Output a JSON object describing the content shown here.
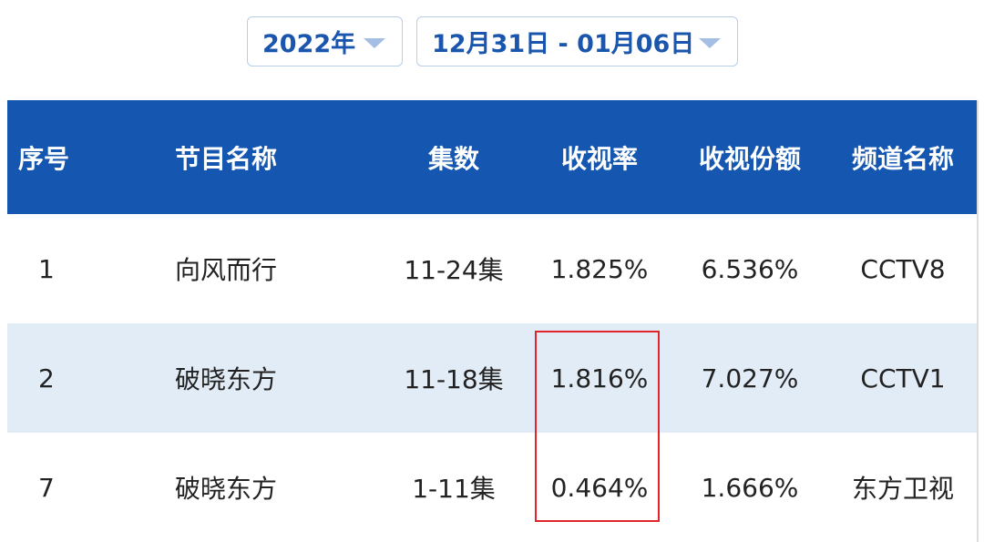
{
  "filters": {
    "year": "2022年",
    "date_range": "12月31日 - 01月06日"
  },
  "table": {
    "headers": [
      "序号",
      "节目名称",
      "集数",
      "收视率",
      "收视份额",
      "频道名称"
    ],
    "rows": [
      [
        "1",
        "向风而行",
        "11-24集",
        "1.825%",
        "6.536%",
        "CCTV8"
      ],
      [
        "2",
        "破晓东方",
        "11-18集",
        "1.816%",
        "7.027%",
        "CCTV1"
      ],
      [
        "7",
        "破晓东方",
        "1-11集",
        "0.464%",
        "1.666%",
        "东方卫视"
      ]
    ]
  },
  "colors": {
    "header_bg": "#1557b0",
    "alt_row": "#e2ecf7",
    "highlight": "#e0252c",
    "accent_text": "#1a56ad"
  }
}
